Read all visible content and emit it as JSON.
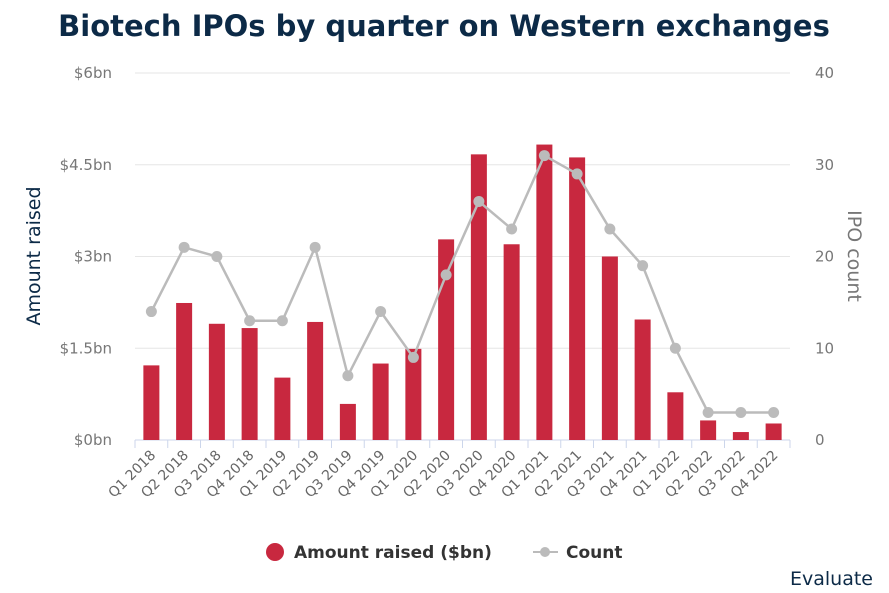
{
  "chart_data": {
    "type": "bar",
    "title": "Biotech IPOs by quarter on Western exchanges",
    "categories": [
      "Q1 2018",
      "Q2 2018",
      "Q3 2018",
      "Q4 2018",
      "Q1 2019",
      "Q2 2019",
      "Q3 2019",
      "Q4 2019",
      "Q1 2020",
      "Q2 2020",
      "Q3 2020",
      "Q4 2020",
      "Q1 2021",
      "Q2 2021",
      "Q3 2021",
      "Q4 2021",
      "Q1 2022",
      "Q2 2022",
      "Q3 2022",
      "Q4 2022"
    ],
    "series": [
      {
        "name": "Amount raised ($bn)",
        "type": "bar",
        "axis": "left",
        "color": "#c8283f",
        "values": [
          1.22,
          2.24,
          1.9,
          1.83,
          1.02,
          1.93,
          0.59,
          1.25,
          1.49,
          3.28,
          4.67,
          3.2,
          4.83,
          4.62,
          3.0,
          1.97,
          0.78,
          0.32,
          0.13,
          0.27
        ]
      },
      {
        "name": "Count",
        "type": "line",
        "axis": "right",
        "color": "#bbbbbb",
        "values": [
          14,
          21,
          20,
          13,
          13,
          21,
          7,
          14,
          9,
          18,
          26,
          23,
          31,
          29,
          23,
          19,
          10,
          3,
          3,
          3
        ]
      }
    ],
    "y_left": {
      "label": "Amount raised",
      "range": [
        0,
        6
      ],
      "ticks": [
        0,
        1.5,
        3,
        4.5,
        6
      ],
      "tick_labels": [
        "$0bn",
        "$1.5bn",
        "$3bn",
        "$4.5bn",
        "$6bn"
      ]
    },
    "y_right": {
      "label": "IPO count",
      "range": [
        0,
        40
      ],
      "ticks": [
        0,
        10,
        20,
        30,
        40
      ],
      "tick_labels": [
        "0",
        "10",
        "20",
        "30",
        "40"
      ]
    },
    "grid": true,
    "legend_position": "bottom-center",
    "source": "Evaluate"
  }
}
